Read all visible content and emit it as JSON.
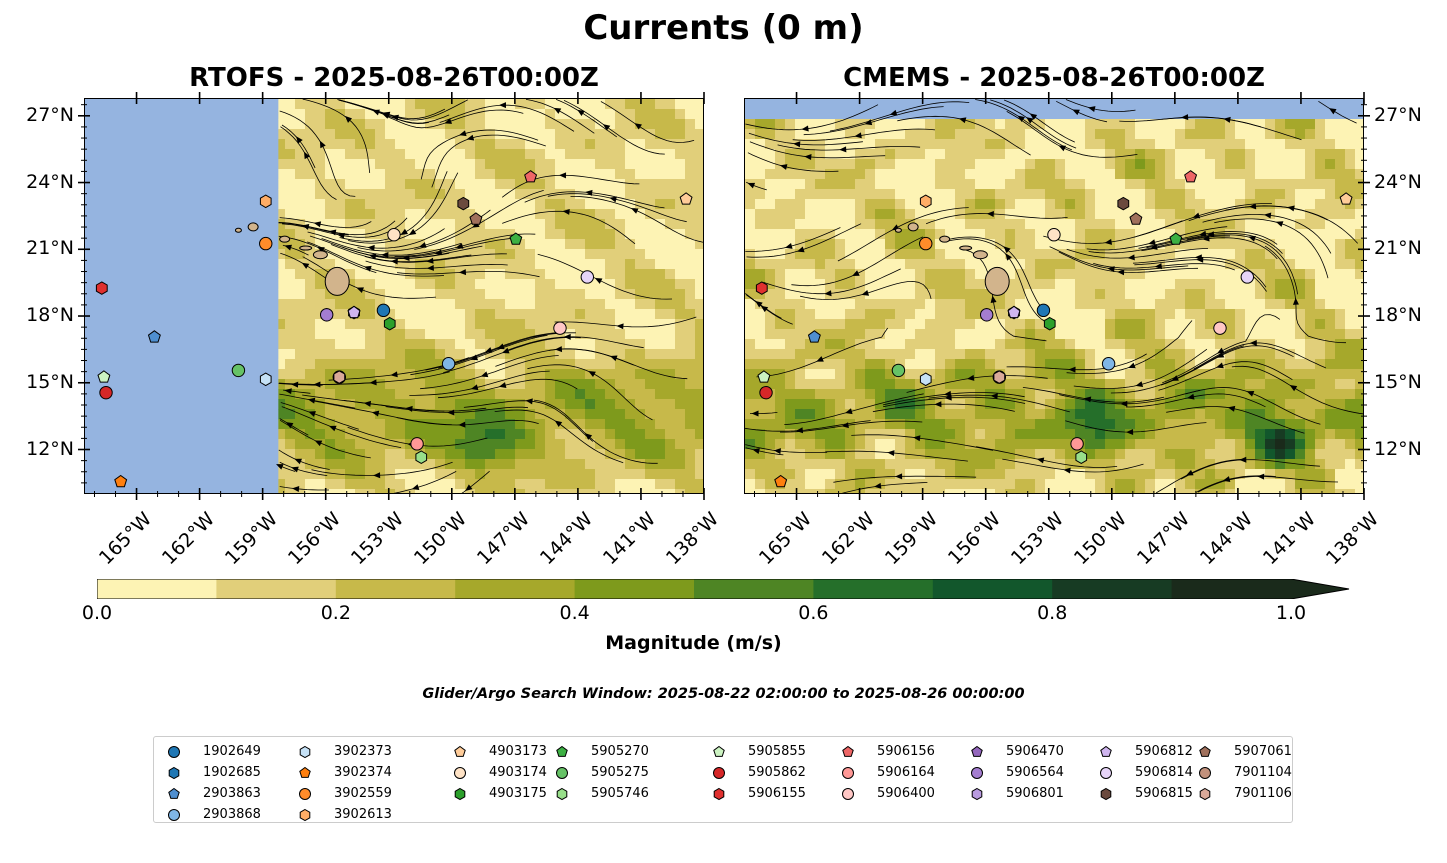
{
  "figure": {
    "suptitle": "Currents (0 m)",
    "panel_left_title": "RTOFS - 2025-08-26T00:00Z",
    "panel_right_title": "CMEMS - 2025-08-26T00:00Z",
    "lat_ticks": [
      "27°N",
      "24°N",
      "21°N",
      "18°N",
      "15°N",
      "12°N"
    ],
    "lon_ticks": [
      "165°W",
      "162°W",
      "159°W",
      "156°W",
      "153°W",
      "150°W",
      "147°W",
      "144°W",
      "141°W",
      "138°W"
    ],
    "colorbar_ticks": [
      "0.0",
      "0.2",
      "0.4",
      "0.6",
      "0.8",
      "1.0"
    ],
    "colorbar_label": "Magnitude (m/s)",
    "search_window_text": "Glider/Argo Search Window: 2025-08-22 02:00:00 to 2025-08-26 00:00:00",
    "colors": {
      "ocean_nodata": "#95b4e0",
      "land": "#d2b48c",
      "cmap": [
        "#fdf3b4",
        "#e1cf7a",
        "#c7b94a",
        "#a6a82b",
        "#7e9a1c",
        "#4e8524",
        "#256f2a",
        "#12572c",
        "#173b23",
        "#1a2a1b"
      ]
    }
  },
  "chart_data": [
    {
      "type": "heatmap",
      "title": "RTOFS - 2025-08-26T00:00Z",
      "variable": "Surface current magnitude (m/s)",
      "xlim": [
        -167.5,
        -138
      ],
      "ylim": [
        10,
        27.8
      ],
      "clim": [
        0,
        1.0
      ],
      "levels": [
        0,
        0.1,
        0.2,
        0.3,
        0.4,
        0.5,
        0.6,
        0.7,
        0.8,
        0.9,
        1.0
      ],
      "domain_west_edge_lon": -158.3,
      "streamlines": true
    },
    {
      "type": "heatmap",
      "title": "CMEMS - 2025-08-26T00:00Z",
      "variable": "Surface current magnitude (m/s)",
      "xlim": [
        -167.5,
        -138
      ],
      "ylim": [
        10,
        27.8
      ],
      "clim": [
        0,
        1.0
      ],
      "levels": [
        0,
        0.1,
        0.2,
        0.3,
        0.4,
        0.5,
        0.6,
        0.7,
        0.8,
        0.9,
        1.0
      ],
      "streamlines": true
    },
    {
      "type": "scatter",
      "series": [
        {
          "name": "1902649",
          "marker": "circle",
          "color": "#1f77b4",
          "lon": -153.3,
          "lat": 18.3
        },
        {
          "name": "1902685",
          "marker": "hexagon",
          "color": "#1f77b4",
          "lon": -156.0,
          "lat": 18.1
        },
        {
          "name": "2903863",
          "marker": "pentagon",
          "color": "#4f8fd0",
          "lon": -164.2,
          "lat": 17.1
        },
        {
          "name": "2903868",
          "marker": "circle",
          "color": "#7fb6e6",
          "lon": -150.2,
          "lat": 15.9
        },
        {
          "name": "3902373",
          "marker": "hexagon",
          "color": "#c5e1f6",
          "lon": -158.9,
          "lat": 15.2
        },
        {
          "name": "3902374",
          "marker": "pentagon",
          "color": "#ff7f0e",
          "lon": -165.8,
          "lat": 10.6
        },
        {
          "name": "3902559",
          "marker": "circle",
          "color": "#ff8c2a",
          "lon": -158.9,
          "lat": 21.3
        },
        {
          "name": "3902613",
          "marker": "hexagon",
          "color": "#ffad66",
          "lon": -158.9,
          "lat": 23.2
        },
        {
          "name": "4903173",
          "marker": "pentagon",
          "color": "#ffcc99",
          "lon": -138.9,
          "lat": 23.3
        },
        {
          "name": "4903174",
          "marker": "circle",
          "color": "#ffe3c6",
          "lon": -152.8,
          "lat": 21.7
        },
        {
          "name": "4903175",
          "marker": "hexagon",
          "color": "#2ca02c",
          "lon": -153.0,
          "lat": 17.7
        },
        {
          "name": "5905270",
          "marker": "pentagon",
          "color": "#3cb043",
          "lon": -147.0,
          "lat": 21.5
        },
        {
          "name": "5905275",
          "marker": "circle",
          "color": "#66c266",
          "lon": -160.2,
          "lat": 15.6
        },
        {
          "name": "5905746",
          "marker": "hexagon",
          "color": "#98df8a",
          "lon": -151.5,
          "lat": 11.7
        },
        {
          "name": "5905855",
          "marker": "pentagon",
          "color": "#ccf3c2",
          "lon": -166.6,
          "lat": 15.3
        },
        {
          "name": "5905862",
          "marker": "circle",
          "color": "#d62728",
          "lon": -166.5,
          "lat": 14.6
        },
        {
          "name": "5906155",
          "marker": "hexagon",
          "color": "#e0302f",
          "lon": -166.7,
          "lat": 19.3
        },
        {
          "name": "5906156",
          "marker": "pentagon",
          "color": "#ee6666",
          "lon": -146.3,
          "lat": 24.3
        },
        {
          "name": "5906164",
          "marker": "circle",
          "color": "#ff9896",
          "lon": -151.7,
          "lat": 12.3
        },
        {
          "name": "5906400",
          "marker": "circle",
          "color": "#ffc7c5",
          "lon": -144.9,
          "lat": 17.5
        },
        {
          "name": "5906470",
          "marker": "pentagon",
          "color": "#9467bd",
          "lon": -154.7,
          "lat": 18.2
        },
        {
          "name": "5906564",
          "marker": "circle",
          "color": "#a47dd0",
          "lon": -156.0,
          "lat": 18.1
        },
        {
          "name": "5906801",
          "marker": "hexagon",
          "color": "#b99be0",
          "lon": -154.7,
          "lat": 18.2
        },
        {
          "name": "5906812",
          "marker": "pentagon",
          "color": "#cfb5ef",
          "lon": -154.7,
          "lat": 18.2
        },
        {
          "name": "5906814",
          "marker": "circle",
          "color": "#e6d4f8",
          "lon": -143.6,
          "lat": 19.8
        },
        {
          "name": "5906815",
          "marker": "hexagon",
          "color": "#6b4a3e",
          "lon": -149.5,
          "lat": 23.1
        },
        {
          "name": "5907061",
          "marker": "pentagon",
          "color": "#a0705c",
          "lon": -148.9,
          "lat": 22.4
        },
        {
          "name": "7901104",
          "marker": "circle",
          "color": "#c2917c",
          "lon": -155.4,
          "lat": 15.3
        },
        {
          "name": "7901106",
          "marker": "hexagon",
          "color": "#d9a999",
          "lon": -155.4,
          "lat": 15.3
        }
      ]
    }
  ]
}
